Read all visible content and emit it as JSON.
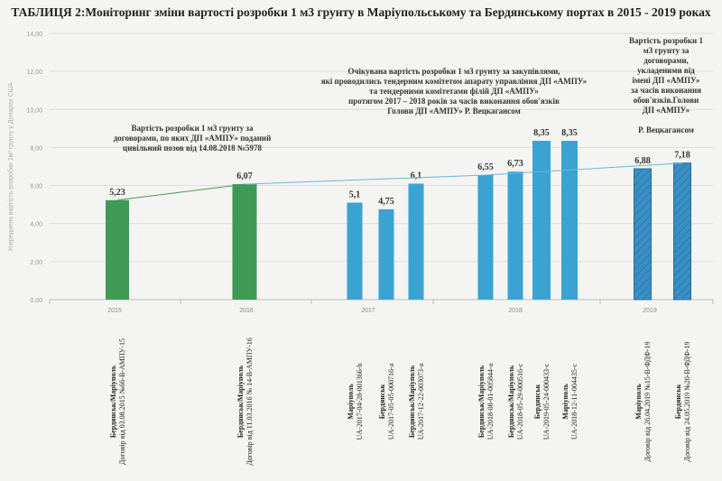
{
  "chart_data": {
    "type": "bar",
    "title": "ТАБЛИЦЯ 2:Моніторинг зміни вартості розробки 1 м3 грунту в Маріупольському та Бердянському портах в 2015 - 2019 роках",
    "ylabel": "Усереднена вартість розробки 1м³ грунту у Доларах США",
    "ylim": [
      0,
      14
    ],
    "yticks": [
      "0,00",
      "2,00",
      "4,00",
      "6,00",
      "8,00",
      "10,00",
      "12,00",
      "14,00"
    ],
    "grid": true,
    "years": [
      "2015",
      "2016",
      "2017",
      "2018",
      "2019"
    ],
    "bars": [
      {
        "year": "2015",
        "value": 5.23,
        "label": "5,23",
        "group": "contract",
        "place": "Бердянськ/Маріуполь",
        "doc": "Договір від 03.08.2015 №66-В-АМПУ-15"
      },
      {
        "year": "2016",
        "value": 6.07,
        "label": "6,07",
        "group": "contract",
        "place": "Бердянськ/Маріуполь",
        "doc": "Договір від 11.03.2016 № 14-В-АМПУ-16"
      },
      {
        "year": "2017",
        "value": 5.1,
        "label": "5,1",
        "group": "tender",
        "place": "Маріуполь",
        "doc": "UA-2017-04-28-001366-b"
      },
      {
        "year": "2017",
        "value": 4.75,
        "label": "4,75",
        "group": "tender",
        "place": "Бердянськ",
        "doc": "UA-2017-05-05-000716-a"
      },
      {
        "year": "2017",
        "value": 6.1,
        "label": "6,1",
        "group": "tender",
        "place": "Бердянськ/Маріуполь",
        "doc": "UA-2017-12-22-003073-a"
      },
      {
        "year": "2018",
        "value": 6.55,
        "label": "6,55",
        "group": "tender",
        "place": "Бердянськ/Маріуполь",
        "doc": "UA-2018-08-01-005844-a"
      },
      {
        "year": "2018",
        "value": 6.73,
        "label": "6,73",
        "group": "tender",
        "place": "Бердянськ/Маріуполь",
        "doc": "UA-2018-05-29-000516-c"
      },
      {
        "year": "2018",
        "value": 8.35,
        "label": "8,35",
        "group": "tender",
        "place": "Бердянськ",
        "doc": "UA-2019-05-24-000433-c"
      },
      {
        "year": "2018",
        "value": 8.35,
        "label": "8,35",
        "group": "tender",
        "place": "Маріуполь",
        "doc": "UA-2018-12-11-004435-c"
      },
      {
        "year": "2019",
        "value": 6.88,
        "label": "6,88",
        "group": "contract2019",
        "place": "Маріуполь",
        "doc": "Договір від 26.04.2019 №15-В-ФДФ-19"
      },
      {
        "year": "2019",
        "value": 7.18,
        "label": "7,18",
        "group": "contract2019",
        "place": "Бердянськ",
        "doc": "Договір від 24.05.2019 №20-В-ФДФ-19"
      }
    ],
    "colors": {
      "contract": "#3f9a55",
      "tender": "#3aa3d2",
      "contract2019": "#3a8fc4",
      "trend_green": "#4a9a55",
      "trend_blue": "#6ab7dc"
    },
    "annotations": [
      [
        "Вартість розробки 1 м3 грунту за",
        "договорами, по яких ДП «АМПУ» поданий",
        "цивільний позов від 14.08.2018 №5978"
      ],
      [
        "Очікувана вартість розробки 1 м3 грунту за закупівлями,",
        "які проводились тендерним комітетом апарату управління ДП «АМПУ»",
        "та тендерними комітетами філій ДП «АМПУ»",
        "протягом 2017 – 2018 років за часів виконання обов'язків",
        "Голови ДП «АМПУ» Р. Вецкагансом"
      ],
      [
        "Вартість розробки 1",
        "м3 грунту за",
        "договорами,",
        "укладеними від",
        "імені ДП «АМПУ»",
        "за часів виконання",
        "обов'язків.Голови",
        "ДП «АМПУ»",
        "",
        "Р. Вецкагансом"
      ]
    ]
  }
}
